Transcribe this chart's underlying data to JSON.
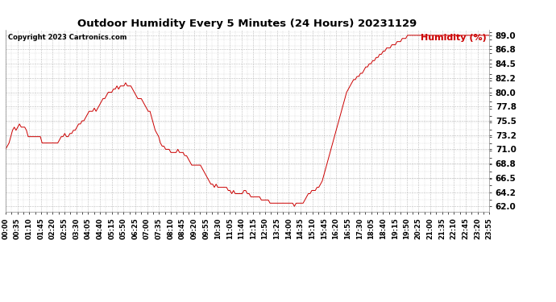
{
  "title": "Outdoor Humidity Every 5 Minutes (24 Hours) 20231129",
  "copyright": "Copyright 2023 Cartronics.com",
  "legend_label": "Humidity (%)",
  "line_color": "#cc0000",
  "legend_color": "#cc0000",
  "background_color": "#ffffff",
  "grid_color": "#bbbbbb",
  "ylabel_right_values": [
    62.0,
    64.2,
    66.5,
    68.8,
    71.0,
    73.2,
    75.5,
    77.8,
    80.0,
    82.2,
    84.5,
    86.8,
    89.0
  ],
  "ylim": [
    61.2,
    89.8
  ],
  "humidity_data": [
    71.0,
    71.5,
    72.0,
    73.0,
    74.0,
    74.5,
    74.0,
    74.5,
    75.0,
    74.5,
    74.5,
    74.5,
    74.0,
    73.0,
    73.0,
    73.0,
    73.0,
    73.0,
    73.0,
    73.0,
    73.0,
    72.0,
    72.0,
    72.0,
    72.0,
    72.0,
    72.0,
    72.0,
    72.0,
    72.0,
    72.0,
    72.5,
    73.0,
    73.0,
    73.5,
    73.0,
    73.0,
    73.5,
    73.5,
    74.0,
    74.0,
    74.5,
    75.0,
    75.0,
    75.5,
    75.5,
    76.0,
    76.5,
    77.0,
    77.0,
    77.0,
    77.5,
    77.0,
    77.5,
    78.0,
    78.5,
    79.0,
    79.0,
    79.5,
    80.0,
    80.0,
    80.0,
    80.5,
    80.5,
    81.0,
    80.5,
    81.0,
    81.0,
    81.0,
    81.5,
    81.0,
    81.0,
    81.0,
    80.5,
    80.0,
    79.5,
    79.0,
    79.0,
    79.0,
    78.5,
    78.0,
    77.5,
    77.0,
    77.0,
    76.0,
    75.0,
    74.0,
    73.5,
    73.0,
    72.0,
    71.5,
    71.5,
    71.0,
    71.0,
    71.0,
    70.5,
    70.5,
    70.5,
    70.5,
    71.0,
    70.5,
    70.5,
    70.5,
    70.0,
    70.0,
    69.5,
    69.0,
    68.5,
    68.5,
    68.5,
    68.5,
    68.5,
    68.5,
    68.0,
    67.5,
    67.0,
    66.5,
    66.0,
    65.5,
    65.5,
    65.0,
    65.5,
    65.0,
    65.0,
    65.0,
    65.0,
    65.0,
    65.0,
    64.5,
    64.5,
    64.0,
    64.5,
    64.0,
    64.0,
    64.0,
    64.0,
    64.0,
    64.5,
    64.5,
    64.0,
    64.0,
    63.5,
    63.5,
    63.5,
    63.5,
    63.5,
    63.5,
    63.0,
    63.0,
    63.0,
    63.0,
    63.0,
    62.5,
    62.5,
    62.5,
    62.5,
    62.5,
    62.5,
    62.5,
    62.5,
    62.5,
    62.5,
    62.5,
    62.5,
    62.5,
    62.5,
    62.0,
    62.5,
    62.5,
    62.5,
    62.5,
    62.5,
    63.0,
    63.5,
    64.0,
    64.0,
    64.5,
    64.5,
    64.5,
    65.0,
    65.0,
    65.5,
    66.0,
    67.0,
    68.0,
    69.0,
    70.0,
    71.0,
    72.0,
    73.0,
    74.0,
    75.0,
    76.0,
    77.0,
    78.0,
    79.0,
    80.0,
    80.5,
    81.0,
    81.5,
    82.0,
    82.0,
    82.5,
    82.5,
    83.0,
    83.0,
    83.5,
    84.0,
    84.0,
    84.5,
    84.5,
    85.0,
    85.0,
    85.5,
    85.5,
    86.0,
    86.0,
    86.5,
    86.5,
    87.0,
    87.0,
    87.0,
    87.5,
    87.5,
    87.5,
    88.0,
    88.0,
    88.0,
    88.5,
    88.5,
    88.5,
    89.0,
    89.0,
    89.0,
    89.0,
    89.0,
    89.0,
    89.0,
    89.0,
    89.0,
    89.0,
    89.0,
    89.0,
    89.0,
    89.0,
    89.0,
    89.0,
    89.0,
    89.0,
    89.0,
    89.0,
    89.0,
    89.0,
    89.0,
    89.0,
    89.0,
    89.0,
    89.0,
    89.0,
    89.0,
    89.0,
    89.0,
    89.0,
    89.0,
    89.0,
    89.0,
    89.0,
    89.0,
    89.0,
    89.0,
    89.0,
    89.0,
    89.0,
    89.0,
    89.0,
    89.0,
    89.0,
    89.0,
    89.0
  ],
  "x_tick_labels": [
    "00:00",
    "00:35",
    "01:10",
    "01:45",
    "02:20",
    "02:55",
    "03:30",
    "04:05",
    "04:40",
    "05:15",
    "05:50",
    "06:25",
    "07:00",
    "07:35",
    "08:10",
    "08:45",
    "09:20",
    "09:55",
    "10:30",
    "11:05",
    "11:40",
    "12:15",
    "12:50",
    "13:25",
    "14:00",
    "14:35",
    "15:10",
    "15:45",
    "16:20",
    "16:55",
    "17:30",
    "18:05",
    "18:40",
    "19:15",
    "19:50",
    "20:25",
    "21:00",
    "21:35",
    "22:10",
    "22:45",
    "23:20",
    "23:55"
  ],
  "title_fontsize": 9.5,
  "copyright_fontsize": 6,
  "legend_fontsize": 8,
  "tick_fontsize": 6,
  "ytick_fontsize": 7.5
}
